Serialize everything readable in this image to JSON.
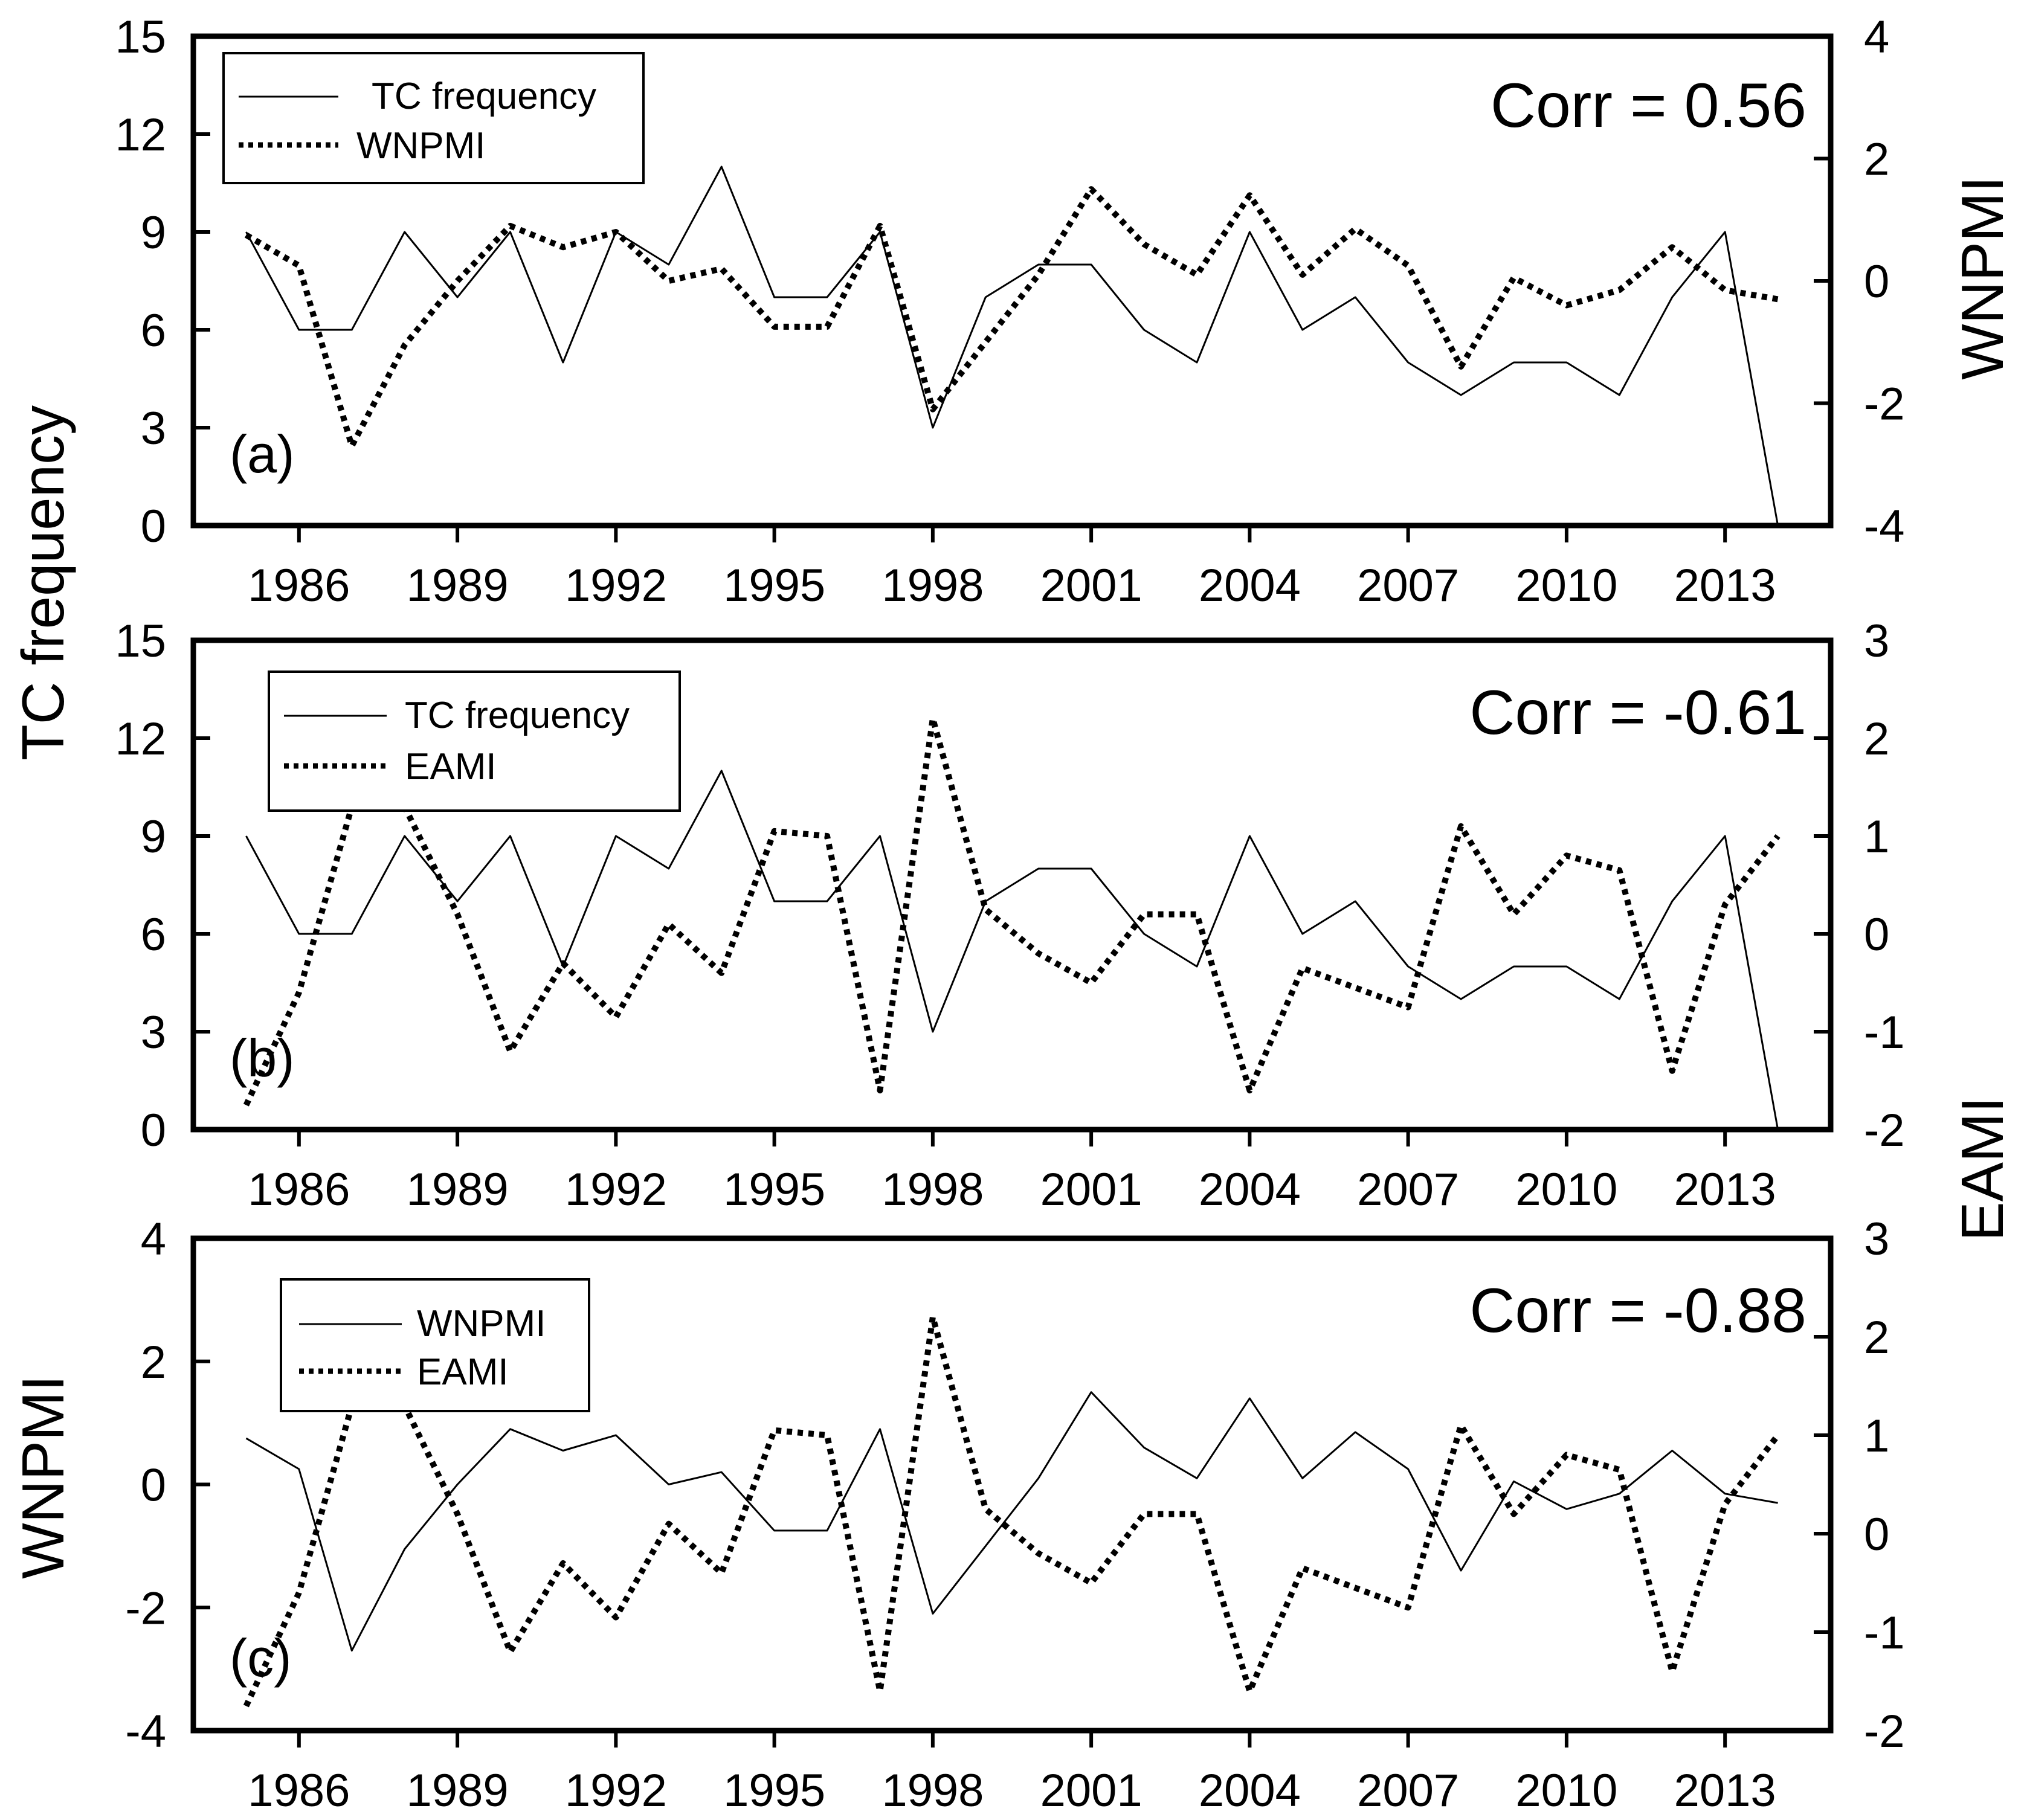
{
  "chart_data": {
    "type": "line",
    "x": [
      1985,
      1986,
      1987,
      1988,
      1989,
      1990,
      1991,
      1992,
      1993,
      1994,
      1995,
      1996,
      1997,
      1998,
      1999,
      2000,
      2001,
      2002,
      2003,
      2004,
      2005,
      2006,
      2007,
      2008,
      2009,
      2010,
      2011,
      2012,
      2013,
      2014
    ],
    "xticks": [
      1986,
      1989,
      1992,
      1995,
      1998,
      2001,
      2004,
      2007,
      2010,
      2013
    ],
    "xlim": [
      1984,
      2015
    ],
    "shared_ylabels": {
      "left": "TC frequency"
    },
    "series_values": {
      "tc_frequency": [
        9,
        6,
        6,
        9,
        7,
        9,
        5,
        9,
        8,
        11,
        7,
        7,
        9,
        3,
        7,
        8,
        8,
        6,
        5,
        9,
        6,
        7,
        5,
        4,
        5,
        5,
        4,
        7,
        9,
        0
      ],
      "wnpmi": [
        0.75,
        0.25,
        -2.7,
        -1.05,
        0.0,
        0.9,
        0.55,
        0.8,
        0.0,
        0.2,
        -0.75,
        -0.75,
        0.9,
        -2.1,
        -1.0,
        0.1,
        1.5,
        0.6,
        0.1,
        1.4,
        0.1,
        0.85,
        0.25,
        -1.4,
        0.05,
        -0.4,
        -0.15,
        0.55,
        -0.15,
        -0.3
      ],
      "eami": [
        -1.75,
        -0.6,
        1.3,
        1.3,
        0.2,
        -1.2,
        -0.3,
        -0.85,
        0.1,
        -0.4,
        1.05,
        1.0,
        -1.6,
        2.2,
        0.25,
        -0.2,
        -0.5,
        0.2,
        0.2,
        -1.6,
        -0.35,
        -0.55,
        -0.75,
        1.1,
        0.2,
        0.8,
        0.65,
        -1.4,
        0.3,
        1.0
      ]
    },
    "panels": [
      {
        "label": "(a)",
        "corr": "Corr = 0.56",
        "left_axis": {
          "ylim": [
            0,
            15
          ],
          "ticks": [
            "0",
            "3",
            "6",
            "9",
            "12",
            "15"
          ]
        },
        "right_axis": {
          "title": "WNPMI",
          "ylim": [
            -4,
            4
          ],
          "ticks": [
            "-4",
            "-2",
            "0",
            "2",
            "4"
          ]
        },
        "xtick_labels": [
          "1986",
          "1989",
          "1992",
          "1995",
          "1998",
          "2001",
          "2004",
          "2007",
          "2010",
          "2013"
        ],
        "series": [
          {
            "name": "TC frequency",
            "key": "tc_frequency",
            "axis": "left",
            "style": "solid"
          },
          {
            "name": "WNPMI",
            "key": "wnpmi",
            "axis": "right",
            "style": "dotted"
          }
        ]
      },
      {
        "label": "(b)",
        "corr": "Corr = -0.61",
        "left_axis": {
          "ylim": [
            0,
            15
          ],
          "ticks": [
            "0",
            "3",
            "6",
            "9",
            "12",
            "15"
          ]
        },
        "right_axis": {
          "title": "EAMI",
          "ylim": [
            -2,
            3
          ],
          "ticks": [
            "-2",
            "-1",
            "0",
            "1",
            "2",
            "3"
          ]
        },
        "xtick_labels": [
          "1986",
          "1989",
          "1992",
          "1995",
          "1998",
          "2001",
          "2004",
          "2007",
          "2010",
          "2013"
        ],
        "series": [
          {
            "name": "TC frequency",
            "key": "tc_frequency",
            "axis": "left",
            "style": "solid"
          },
          {
            "name": "EAMI",
            "key": "eami",
            "axis": "right",
            "style": "dotted"
          }
        ]
      },
      {
        "label": "(c)",
        "corr": "Corr = -0.88",
        "left_axis": {
          "title": "WNPMI",
          "ylim": [
            -4,
            4
          ],
          "ticks": [
            "-4",
            "-2",
            "0",
            "2",
            "4"
          ]
        },
        "right_axis": {
          "ylim": [
            -2,
            3
          ],
          "ticks": [
            "-2",
            "-1",
            "0",
            "1",
            "2",
            "3"
          ]
        },
        "xtick_labels": [
          "1986",
          "1989",
          "1992",
          "1995",
          "1998",
          "2001",
          "2004",
          "2007",
          "2010",
          "2013"
        ],
        "series": [
          {
            "name": "WNPMI",
            "key": "wnpmi",
            "axis": "left",
            "style": "solid"
          },
          {
            "name": "EAMI",
            "key": "eami",
            "axis": "right",
            "style": "dotted"
          }
        ]
      }
    ]
  }
}
